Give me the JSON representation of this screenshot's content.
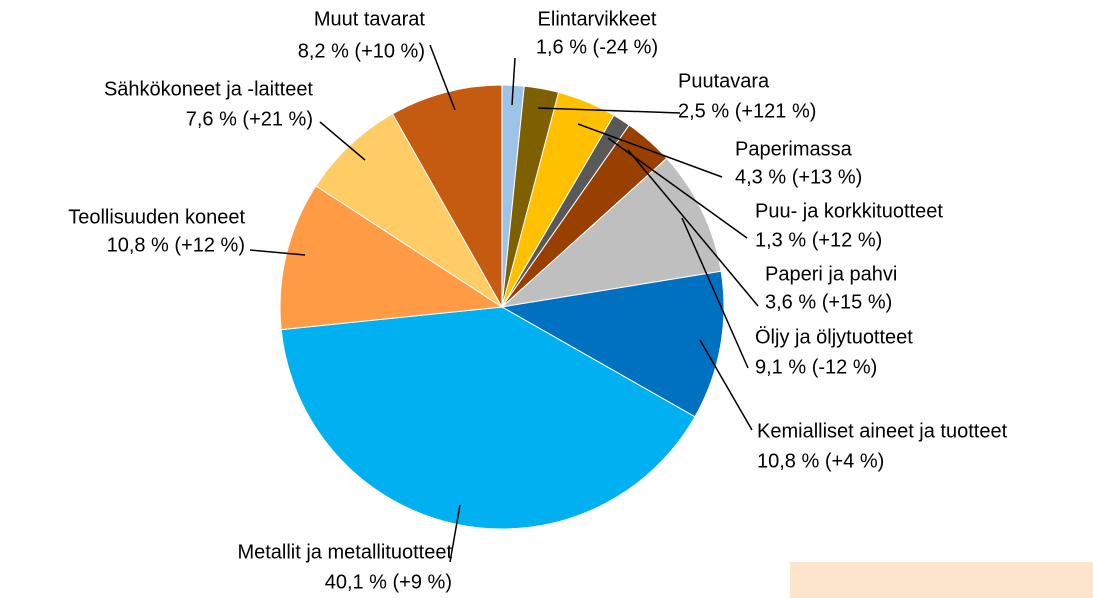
{
  "chart_data": {
    "type": "pie",
    "categories": [
      "Elintarvikkeet",
      "Puutavara",
      "Paperimassa",
      "Puu- ja korkkituotteet",
      "Paperi ja pahvi",
      "Öljy ja öljytuotteet",
      "Kemialliset aineet ja tuotteet",
      "Metallit ja metallituotteet",
      "Teollisuuden koneet",
      "Sähkökoneet ja -laitteet",
      "Muut tavarat"
    ],
    "values": [
      1.6,
      2.5,
      4.3,
      1.3,
      3.6,
      9.1,
      10.8,
      40.1,
      10.8,
      7.6,
      8.2
    ],
    "value_labels": [
      "1,6 % (-24 %)",
      "2,5 % (+121 %)",
      "4,3 % (+13 %)",
      "1,3 % (+12 %)",
      "3,6 % (+15 %)",
      "9,1 % (-12 %)",
      "10,8 % (+4 %)",
      "40,1 % (+9 %)",
      "10,8 % (+12 %)",
      "7,6 % (+21 %)",
      "8,2 % (+10 %)"
    ],
    "colors": [
      "#9dc3e6",
      "#7f6000",
      "#ffc000",
      "#595959",
      "#993f00",
      "#bfbfbf",
      "#0070c0",
      "#00b0f0",
      "#ff9a45",
      "#ffcc66",
      "#c55a11"
    ]
  }
}
